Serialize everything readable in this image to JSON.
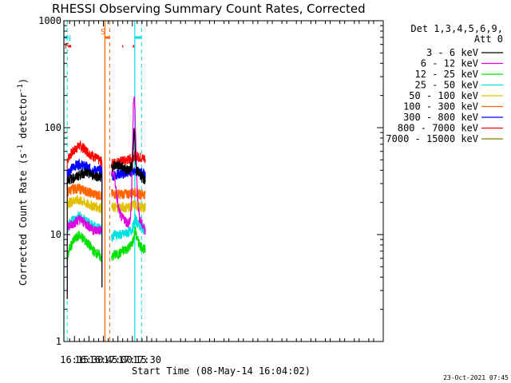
{
  "chart_data": {
    "type": "line",
    "title": "RHESSI Observing Summary Count Rates, Corrected",
    "xlabel": "Start Time (08-May-14 16:04:02)",
    "ylabel_prefix": "Corrected Count Rate (s",
    "ylabel_sup1": "-1",
    "ylabel_mid": " detector",
    "ylabel_sup2": "-1",
    "ylabel_suffix": ")",
    "yscale": "log",
    "ylim": [
      1,
      1000
    ],
    "xlim_min": [
      964,
      1295
    ],
    "x_ticks": [
      {
        "t": 975,
        "label": "16:15"
      },
      {
        "t": 990,
        "label": "16:30"
      },
      {
        "t": 1005,
        "label": "16:45"
      },
      {
        "t": 1020,
        "label": "17:00"
      },
      {
        "t": 1035,
        "label": "17:15"
      },
      {
        "t": 1050,
        "label": "17:30"
      }
    ],
    "y_ticks": [
      {
        "v": 1,
        "label": "1"
      },
      {
        "v": 10,
        "label": "10"
      },
      {
        "v": 100,
        "label": "100"
      },
      {
        "v": 1000,
        "label": "1000"
      }
    ],
    "legend": {
      "header1": "Det 1,3,4,5,6,9,",
      "header2": "Att 0",
      "placement": "right"
    },
    "series": [
      {
        "name": "3 - 6 keV",
        "color": "#000000",
        "seg1": [
          [
            967.5,
            33
          ],
          [
            970,
            33
          ],
          [
            975,
            34
          ],
          [
            980,
            36
          ],
          [
            985,
            38
          ],
          [
            990,
            37
          ],
          [
            995,
            36
          ],
          [
            1000,
            35
          ],
          [
            1003.5,
            34
          ]
        ],
        "seg2": [
          [
            1013.5,
            42
          ],
          [
            1016,
            44
          ],
          [
            1020,
            45
          ],
          [
            1025,
            43
          ],
          [
            1030,
            40
          ],
          [
            1033,
            42
          ],
          [
            1035,
            45
          ],
          [
            1036,
            70
          ],
          [
            1037,
            100
          ],
          [
            1038,
            60
          ],
          [
            1039,
            40
          ],
          [
            1042,
            38
          ],
          [
            1044,
            36
          ],
          [
            1045,
            34
          ],
          [
            1047,
            33
          ],
          [
            1048.5,
            32
          ]
        ]
      },
      {
        "name": "6 - 12 keV",
        "color": "#e000e0",
        "seg1": [
          [
            967.5,
            13
          ],
          [
            970,
            12
          ],
          [
            975,
            13
          ],
          [
            980,
            14
          ],
          [
            985,
            13
          ],
          [
            990,
            12
          ],
          [
            995,
            11
          ],
          [
            1000,
            11
          ],
          [
            1003.5,
            11
          ]
        ],
        "seg2": [
          [
            1013.5,
            38
          ],
          [
            1015,
            40
          ],
          [
            1017,
            32
          ],
          [
            1019,
            22
          ],
          [
            1021,
            17
          ],
          [
            1023,
            15
          ],
          [
            1025,
            14
          ],
          [
            1027,
            14
          ],
          [
            1029,
            13
          ],
          [
            1031,
            13
          ],
          [
            1033,
            14
          ],
          [
            1034,
            20
          ],
          [
            1035,
            60
          ],
          [
            1036,
            150
          ],
          [
            1037,
            205
          ],
          [
            1038,
            120
          ],
          [
            1039,
            50
          ],
          [
            1040,
            25
          ],
          [
            1042,
            15
          ],
          [
            1044,
            13
          ],
          [
            1046,
            12
          ],
          [
            1048.5,
            11
          ]
        ]
      },
      {
        "name": "12 - 25 keV",
        "color": "#00e000",
        "seg1": [
          [
            967.5,
            6
          ],
          [
            970,
            7.5
          ],
          [
            975,
            9
          ],
          [
            980,
            10
          ],
          [
            985,
            9
          ],
          [
            990,
            8
          ],
          [
            995,
            7
          ],
          [
            1000,
            6.5
          ],
          [
            1003.5,
            6
          ]
        ],
        "seg2": [
          [
            1013.5,
            6
          ],
          [
            1016,
            6.5
          ],
          [
            1020,
            6.5
          ],
          [
            1025,
            7
          ],
          [
            1030,
            7.5
          ],
          [
            1034,
            8
          ],
          [
            1036,
            9
          ],
          [
            1038,
            11
          ],
          [
            1040,
            9
          ],
          [
            1043,
            8
          ],
          [
            1046,
            7.5
          ],
          [
            1048.5,
            7
          ]
        ]
      },
      {
        "name": "25 - 50 keV",
        "color": "#00e0e0",
        "seg1": [
          [
            967.5,
            11
          ],
          [
            970,
            13
          ],
          [
            975,
            14
          ],
          [
            980,
            15
          ],
          [
            985,
            14
          ],
          [
            990,
            13
          ],
          [
            995,
            12
          ],
          [
            1000,
            11.5
          ],
          [
            1003.5,
            11
          ]
        ],
        "seg2": [
          [
            1013.5,
            9.5
          ],
          [
            1016,
            10
          ],
          [
            1020,
            10
          ],
          [
            1025,
            10
          ],
          [
            1030,
            10.5
          ],
          [
            1034,
            11
          ],
          [
            1036,
            12
          ],
          [
            1038,
            14
          ],
          [
            1040,
            13
          ],
          [
            1043,
            12
          ],
          [
            1046,
            11.5
          ],
          [
            1048.5,
            11
          ]
        ]
      },
      {
        "name": "50 - 100 keV",
        "color": "#e0c000",
        "seg1": [
          [
            967.5,
            20
          ],
          [
            970,
            20
          ],
          [
            975,
            21
          ],
          [
            980,
            21
          ],
          [
            985,
            20
          ],
          [
            990,
            19
          ],
          [
            995,
            18.5
          ],
          [
            1000,
            18
          ],
          [
            1003.5,
            18
          ]
        ],
        "seg2": [
          [
            1013.5,
            18
          ],
          [
            1016,
            18
          ],
          [
            1020,
            18
          ],
          [
            1025,
            18
          ],
          [
            1030,
            18
          ],
          [
            1034,
            18.5
          ],
          [
            1036,
            19
          ],
          [
            1038,
            19
          ],
          [
            1040,
            18.5
          ],
          [
            1043,
            18
          ],
          [
            1046,
            18
          ],
          [
            1048.5,
            18
          ]
        ]
      },
      {
        "name": "100 - 300 keV",
        "color": "#ff6600",
        "seg1": [
          [
            967.5,
            25
          ],
          [
            970,
            26
          ],
          [
            975,
            27
          ],
          [
            980,
            27
          ],
          [
            985,
            26
          ],
          [
            990,
            25
          ],
          [
            995,
            24
          ],
          [
            1000,
            23.5
          ],
          [
            1003.5,
            23
          ]
        ],
        "seg2": [
          [
            1013.5,
            24
          ],
          [
            1016,
            24
          ],
          [
            1020,
            24
          ],
          [
            1025,
            24
          ],
          [
            1030,
            24
          ],
          [
            1034,
            24.5
          ],
          [
            1036,
            25
          ],
          [
            1038,
            25
          ],
          [
            1040,
            24.5
          ],
          [
            1043,
            24
          ],
          [
            1046,
            24
          ],
          [
            1048.5,
            24
          ]
        ]
      },
      {
        "name": "300 - 800 keV",
        "color": "#0000ff",
        "seg1": [
          [
            967.5,
            38
          ],
          [
            970,
            40
          ],
          [
            975,
            44
          ],
          [
            980,
            46
          ],
          [
            985,
            44
          ],
          [
            990,
            42
          ],
          [
            995,
            40
          ],
          [
            1000,
            40
          ],
          [
            1003.5,
            40
          ]
        ],
        "seg2": [
          [
            1013.5,
            35
          ],
          [
            1016,
            36
          ],
          [
            1020,
            37
          ],
          [
            1025,
            37
          ],
          [
            1030,
            38
          ],
          [
            1034,
            39
          ],
          [
            1036,
            40
          ],
          [
            1038,
            40
          ],
          [
            1040,
            39
          ],
          [
            1043,
            38
          ],
          [
            1046,
            38
          ],
          [
            1048.5,
            37
          ]
        ]
      },
      {
        "name": "800 - 7000 keV",
        "color": "#ff0000",
        "seg1": [
          [
            967.5,
            50
          ],
          [
            970,
            55
          ],
          [
            975,
            62
          ],
          [
            980,
            68
          ],
          [
            985,
            64
          ],
          [
            990,
            58
          ],
          [
            995,
            54
          ],
          [
            1000,
            50
          ],
          [
            1003.5,
            48
          ]
        ],
        "seg2": [
          [
            1013.5,
            46
          ],
          [
            1016,
            47
          ],
          [
            1020,
            48
          ],
          [
            1025,
            49
          ],
          [
            1030,
            50
          ],
          [
            1034,
            52
          ],
          [
            1036,
            54
          ],
          [
            1038,
            55
          ],
          [
            1040,
            54
          ],
          [
            1043,
            53
          ],
          [
            1046,
            52
          ],
          [
            1048.5,
            51
          ]
        ]
      },
      {
        "name": "7000 - 15000 keV",
        "color": "#808000",
        "seg1": [],
        "seg2": []
      }
    ],
    "flags": [
      {
        "label": "N",
        "color": "#00e0e0",
        "bar_from": 964,
        "bar_to": 967.5,
        "vlines": [
          967.5
        ],
        "solid_vlines": [
          964
        ],
        "label_t": 969
      },
      {
        "label": "S",
        "color": "#ff6600",
        "bar_from": 1006.5,
        "bar_to": 1011.5,
        "vlines": [
          1011.5
        ],
        "solid_vlines": [
          1006.5
        ],
        "label_t": 1004.5
      },
      {
        "label": "F",
        "color": "#ff0000",
        "bars": [
          [
            968.5,
            971.5
          ],
          [
            1024.5,
            1025.5
          ],
          [
            1035.5,
            1037
          ]
        ],
        "label_t": 967.0
      }
    ],
    "n_after": {
      "color": "#00e0e0",
      "bar_from": 1037.5,
      "bar_to": 1044.5,
      "vlines": [
        1044.5
      ],
      "solid_vlines": [
        1037.5
      ]
    }
  },
  "footer": {
    "timestamp": "23-Oct-2021 07:45"
  }
}
